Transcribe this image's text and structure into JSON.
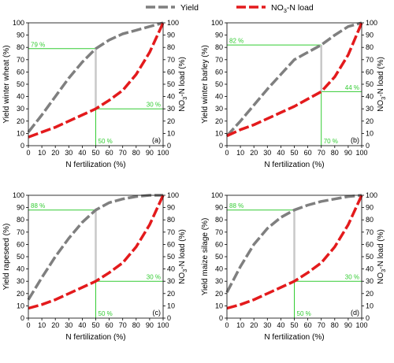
{
  "legend": {
    "yield_label": "Yield",
    "nitrate_label_prefix": "NO",
    "nitrate_label_sub": "3",
    "nitrate_label_suffix": "-N load"
  },
  "colors": {
    "yield": "#7f7f7f",
    "nitrate": "#e31a1c",
    "annotation": "#33cc33",
    "connector": "#c8c8c8"
  },
  "chart_data": [
    {
      "type": "line",
      "panel_letter": "(a)",
      "xlabel": "N fertilization (%)",
      "ylabel": "Yield winter wheat (%)",
      "y2label_prefix": "NO",
      "y2label_sub": "3",
      "y2label_suffix": "-N load (%)",
      "xlim": [
        0,
        100
      ],
      "ylim": [
        0,
        100
      ],
      "y2lim": [
        0,
        100
      ],
      "ticks": [
        "0",
        "10",
        "20",
        "30",
        "40",
        "50",
        "60",
        "70",
        "80",
        "90",
        "100"
      ],
      "series": [
        {
          "name": "Yield",
          "x": [
            0,
            10,
            20,
            30,
            40,
            50,
            60,
            70,
            80,
            90,
            100
          ],
          "values": [
            11,
            25,
            40,
            55,
            68,
            79,
            86,
            91,
            94,
            97,
            100
          ]
        },
        {
          "name": "NO3-N load",
          "x": [
            0,
            10,
            20,
            30,
            40,
            50,
            60,
            70,
            80,
            90,
            100
          ],
          "values": [
            7,
            11,
            15,
            20,
            25,
            30,
            37,
            45,
            58,
            76,
            100
          ]
        }
      ],
      "annotation": {
        "x": 50,
        "yield": 79,
        "nitrate": 30,
        "label_yield": "79 %",
        "label_nitrate": "30 %",
        "label_x": "50 %"
      }
    },
    {
      "type": "line",
      "panel_letter": "(b)",
      "xlabel": "N fertilization (%)",
      "ylabel": "Yield winter barley (%)",
      "y2label_prefix": "NO",
      "y2label_sub": "3",
      "y2label_suffix": "-N load (%)",
      "xlim": [
        0,
        100
      ],
      "ylim": [
        0,
        100
      ],
      "y2lim": [
        0,
        100
      ],
      "ticks": [
        "0",
        "10",
        "20",
        "30",
        "40",
        "50",
        "60",
        "70",
        "80",
        "90",
        "100"
      ],
      "series": [
        {
          "name": "Yield",
          "x": [
            0,
            10,
            20,
            30,
            40,
            50,
            60,
            70,
            80,
            90,
            100
          ],
          "values": [
            8,
            20,
            33,
            46,
            58,
            70,
            76,
            82,
            90,
            97,
            100
          ]
        },
        {
          "name": "NO3-N load",
          "x": [
            0,
            10,
            20,
            30,
            40,
            50,
            60,
            70,
            80,
            90,
            100
          ],
          "values": [
            8,
            13,
            17,
            22,
            27,
            32,
            38,
            44,
            56,
            74,
            100
          ]
        }
      ],
      "annotation": {
        "x": 70,
        "yield": 82,
        "nitrate": 44,
        "label_yield": "82 %",
        "label_nitrate": "44 %",
        "label_x": "70 %"
      }
    },
    {
      "type": "line",
      "panel_letter": "(c)",
      "xlabel": "N fertilization (%)",
      "ylabel": "Yield rapeseed (%)",
      "y2label_prefix": "NO",
      "y2label_sub": "3",
      "y2label_suffix": "-N load (%)",
      "xlim": [
        0,
        100
      ],
      "ylim": [
        0,
        100
      ],
      "y2lim": [
        0,
        100
      ],
      "ticks": [
        "0",
        "10",
        "20",
        "30",
        "40",
        "50",
        "60",
        "70",
        "80",
        "90",
        "100"
      ],
      "series": [
        {
          "name": "Yield",
          "x": [
            0,
            10,
            20,
            30,
            40,
            50,
            60,
            70,
            80,
            90,
            100
          ],
          "values": [
            15,
            33,
            50,
            65,
            78,
            88,
            94,
            97,
            99,
            100,
            100
          ]
        },
        {
          "name": "NO3-N load",
          "x": [
            0,
            10,
            20,
            30,
            40,
            50,
            60,
            70,
            80,
            90,
            100
          ],
          "values": [
            8,
            11,
            15,
            20,
            25,
            30,
            37,
            45,
            58,
            76,
            100
          ]
        }
      ],
      "annotation": {
        "x": 50,
        "yield": 88,
        "nitrate": 30,
        "label_yield": "88 %",
        "label_nitrate": "30 %",
        "label_x": "50 %"
      }
    },
    {
      "type": "line",
      "panel_letter": "(d)",
      "xlabel": "N fertilization (%)",
      "ylabel": "Yield maize silage (%)",
      "y2label_prefix": "NO",
      "y2label_sub": "3",
      "y2label_suffix": "-N load (%)",
      "xlim": [
        0,
        100
      ],
      "ylim": [
        0,
        100
      ],
      "y2lim": [
        0,
        100
      ],
      "ticks": [
        "0",
        "10",
        "20",
        "30",
        "40",
        "50",
        "60",
        "70",
        "80",
        "90",
        "100"
      ],
      "series": [
        {
          "name": "Yield",
          "x": [
            0,
            10,
            20,
            30,
            40,
            50,
            60,
            70,
            80,
            90,
            100
          ],
          "values": [
            21,
            42,
            60,
            73,
            82,
            88,
            92,
            95,
            97,
            99,
            100
          ]
        },
        {
          "name": "NO3-N load",
          "x": [
            0,
            10,
            20,
            30,
            40,
            50,
            60,
            70,
            80,
            90,
            100
          ],
          "values": [
            8,
            11,
            15,
            20,
            25,
            30,
            37,
            45,
            58,
            76,
            100
          ]
        }
      ],
      "annotation": {
        "x": 50,
        "yield": 88,
        "nitrate": 30,
        "label_yield": "88 %",
        "label_nitrate": "30 %",
        "label_x": "50 %"
      }
    }
  ]
}
